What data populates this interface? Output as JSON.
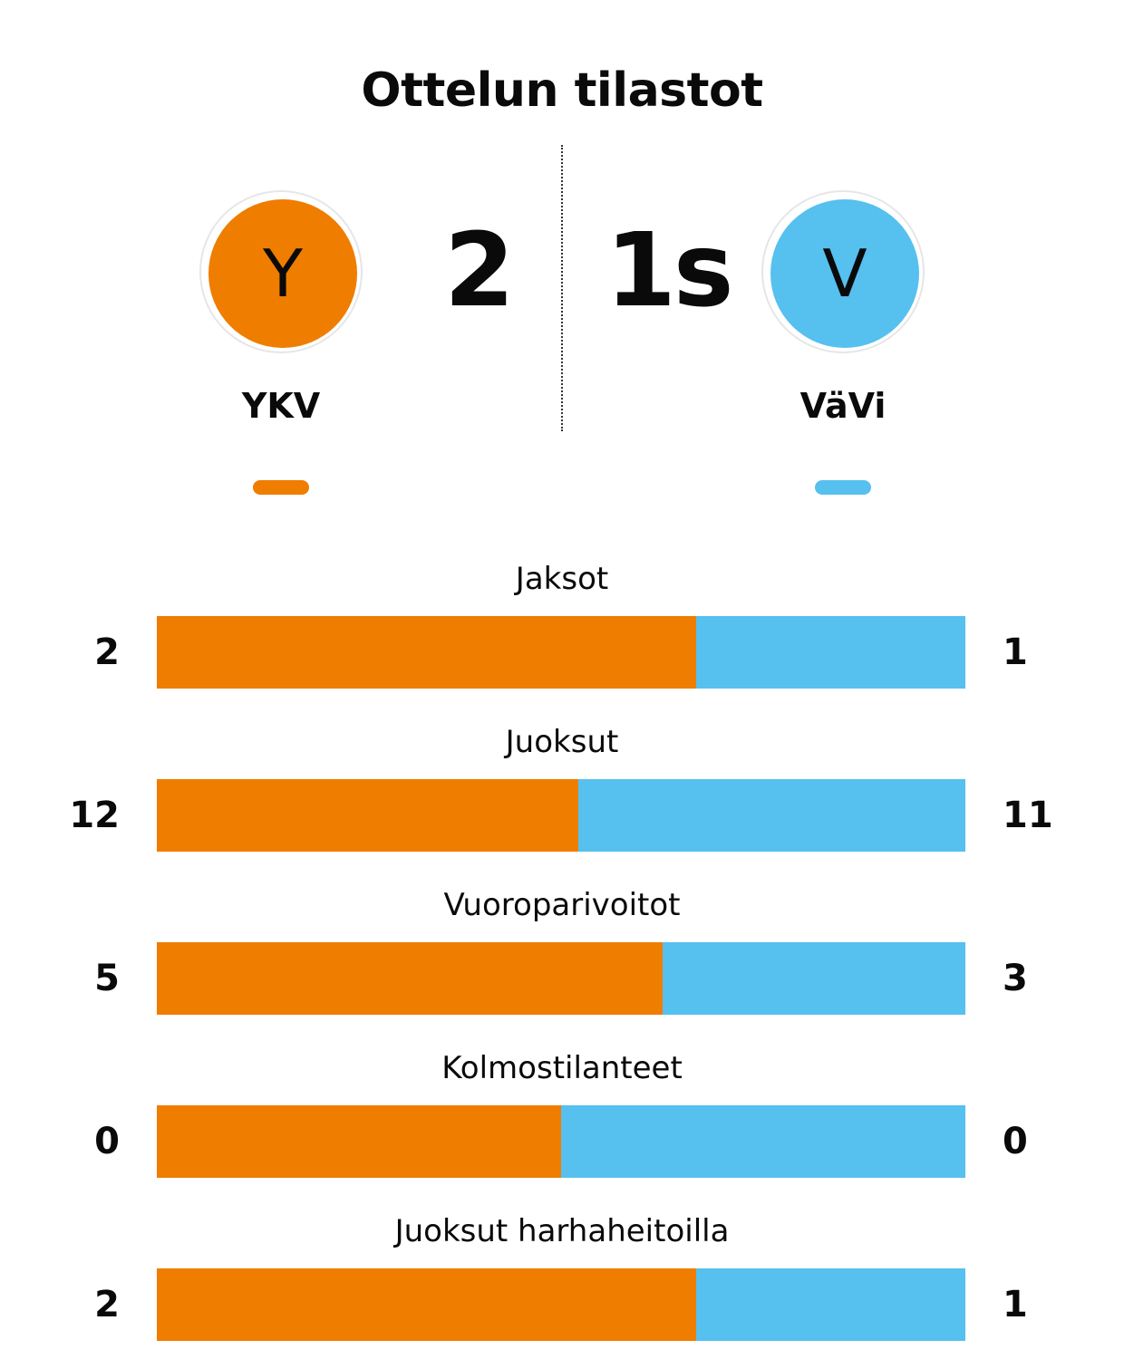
{
  "title": "Ottelun tilastot",
  "colors": {
    "home": "#ef7d00",
    "away": "#56c0ef"
  },
  "home": {
    "name": "YKV",
    "logo_letter": "Y",
    "score": "2"
  },
  "away": {
    "name": "VäVi",
    "logo_letter": "V",
    "score": "1s"
  },
  "chart_data": {
    "type": "bar",
    "orientation": "horizontal",
    "stacked": true,
    "normalized": true,
    "categories": [
      "Jaksot",
      "Juoksut",
      "Vuoroparivoitot",
      "Kolmostilanteet",
      "Juoksut harhaheitoilla"
    ],
    "series": [
      {
        "name": "YKV",
        "values": [
          2,
          12,
          5,
          0,
          2
        ]
      },
      {
        "name": "VäVi",
        "values": [
          1,
          11,
          3,
          0,
          1
        ]
      }
    ],
    "legend": "top"
  }
}
